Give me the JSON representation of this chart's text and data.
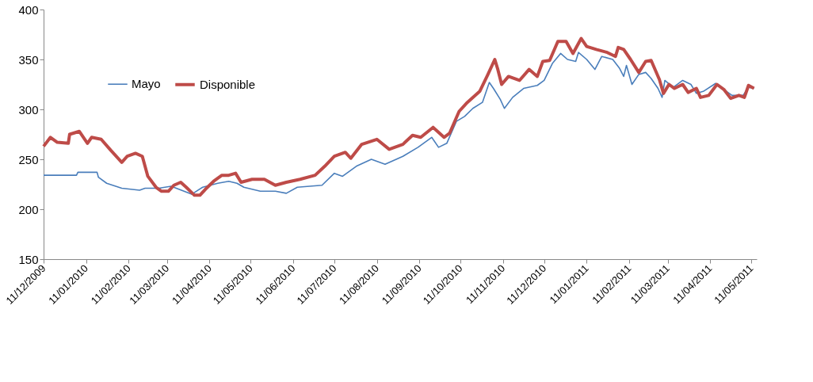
{
  "chart_data": {
    "type": "line",
    "ylim": [
      150,
      400
    ],
    "yticks": [
      150,
      200,
      250,
      300,
      350,
      400
    ],
    "xlim": [
      "2009-12-11",
      "2011-05-15"
    ],
    "xticks": [
      {
        "value": "2009-12-11",
        "label": "11/12/2009"
      },
      {
        "value": "2010-01-11",
        "label": "11/01/2010"
      },
      {
        "value": "2010-02-11",
        "label": "11/02/2010"
      },
      {
        "value": "2010-03-11",
        "label": "11/03/2010"
      },
      {
        "value": "2010-04-11",
        "label": "11/04/2010"
      },
      {
        "value": "2010-05-11",
        "label": "11/05/2010"
      },
      {
        "value": "2010-06-11",
        "label": "11/06/2010"
      },
      {
        "value": "2010-07-11",
        "label": "11/07/2010"
      },
      {
        "value": "2010-08-11",
        "label": "11/08/2010"
      },
      {
        "value": "2010-09-11",
        "label": "11/09/2010"
      },
      {
        "value": "2010-10-11",
        "label": "11/10/2010"
      },
      {
        "value": "2010-11-11",
        "label": "11/11/2010"
      },
      {
        "value": "2010-12-11",
        "label": "11/12/2010"
      },
      {
        "value": "2011-01-11",
        "label": "11/01/2011"
      },
      {
        "value": "2011-02-11",
        "label": "11/02/2011"
      },
      {
        "value": "2011-03-11",
        "label": "11/03/2011"
      },
      {
        "value": "2011-04-11",
        "label": "11/04/2011"
      },
      {
        "value": "2011-05-11",
        "label": "11/05/2011"
      }
    ],
    "grid": false,
    "legend": "top left",
    "marker": "none",
    "line_style": "solid",
    "series": [
      {
        "name": "Mayo",
        "color": "#4a7ebb",
        "x": [
          "2009-12-11",
          "2010-01-04",
          "2010-01-05",
          "2010-01-19",
          "2010-01-20",
          "2010-01-26",
          "2010-02-06",
          "2010-02-19",
          "2010-02-23",
          "2010-03-05",
          "2010-03-14",
          "2010-03-29",
          "2010-04-06",
          "2010-04-17",
          "2010-04-25",
          "2010-05-01",
          "2010-05-06",
          "2010-05-18",
          "2010-05-29",
          "2010-06-06",
          "2010-06-14",
          "2010-07-02",
          "2010-07-11",
          "2010-07-17",
          "2010-07-27",
          "2010-08-07",
          "2010-08-17",
          "2010-08-30",
          "2010-09-10",
          "2010-09-20",
          "2010-09-25",
          "2010-10-01",
          "2010-10-08",
          "2010-10-14",
          "2010-10-20",
          "2010-10-27",
          "2010-11-01",
          "2010-11-04",
          "2010-11-09",
          "2010-11-12",
          "2010-11-18",
          "2010-11-26",
          "2010-12-06",
          "2010-12-11",
          "2010-12-17",
          "2010-12-23",
          "2010-12-28",
          "2011-01-03",
          "2011-01-05",
          "2011-01-11",
          "2011-01-17",
          "2011-01-22",
          "2011-01-30",
          "2011-02-04",
          "2011-02-07",
          "2011-02-09",
          "2011-02-13",
          "2011-02-18",
          "2011-02-23",
          "2011-02-27",
          "2011-03-04",
          "2011-03-07",
          "2011-03-09",
          "2011-03-15",
          "2011-03-22",
          "2011-03-28",
          "2011-04-01",
          "2011-04-06",
          "2011-04-15",
          "2011-04-21",
          "2011-04-27",
          "2011-05-05",
          "2011-05-09",
          "2011-05-13"
        ],
        "values": [
          234,
          234,
          237,
          237,
          232,
          226,
          221,
          219,
          221,
          221,
          223,
          215,
          222,
          226,
          228,
          226,
          222,
          218,
          218,
          216,
          222,
          224,
          236,
          233,
          243,
          250,
          245,
          253,
          262,
          272,
          262,
          266,
          288,
          293,
          301,
          307,
          327,
          321,
          310,
          301,
          312,
          321,
          324,
          329,
          346,
          356,
          350,
          348,
          357,
          350,
          340,
          353,
          350,
          341,
          333,
          344,
          325,
          335,
          337,
          331,
          321,
          312,
          329,
          322,
          329,
          325,
          316,
          318,
          326,
          320,
          314,
          314,
          322,
          321
        ]
      },
      {
        "name": "Disponible",
        "color": "#be4b48",
        "x": [
          "2009-12-11",
          "2009-12-16",
          "2009-12-21",
          "2009-12-29",
          "2009-12-30",
          "2010-01-06",
          "2010-01-12",
          "2010-01-15",
          "2010-01-22",
          "2010-01-29",
          "2010-02-06",
          "2010-02-10",
          "2010-02-16",
          "2010-02-21",
          "2010-02-25",
          "2010-03-03",
          "2010-03-07",
          "2010-03-12",
          "2010-03-16",
          "2010-03-21",
          "2010-03-25",
          "2010-03-31",
          "2010-04-04",
          "2010-04-08",
          "2010-04-14",
          "2010-04-20",
          "2010-04-25",
          "2010-04-30",
          "2010-05-04",
          "2010-05-12",
          "2010-05-21",
          "2010-05-29",
          "2010-06-06",
          "2010-06-16",
          "2010-06-27",
          "2010-07-04",
          "2010-07-11",
          "2010-07-19",
          "2010-07-23",
          "2010-07-31",
          "2010-08-11",
          "2010-08-20",
          "2010-08-30",
          "2010-09-06",
          "2010-09-12",
          "2010-09-21",
          "2010-09-29",
          "2010-10-03",
          "2010-10-10",
          "2010-10-16",
          "2010-10-25",
          "2010-10-31",
          "2010-11-05",
          "2010-11-07",
          "2010-11-10",
          "2010-11-15",
          "2010-11-23",
          "2010-11-30",
          "2010-12-06",
          "2010-12-10",
          "2010-12-15",
          "2010-12-21",
          "2010-12-27",
          "2011-01-01",
          "2011-01-07",
          "2011-01-11",
          "2011-01-18",
          "2011-01-26",
          "2011-02-01",
          "2011-02-03",
          "2011-02-07",
          "2011-02-12",
          "2011-02-18",
          "2011-02-23",
          "2011-02-27",
          "2011-03-05",
          "2011-03-08",
          "2011-03-12",
          "2011-03-16",
          "2011-03-22",
          "2011-03-26",
          "2011-04-01",
          "2011-04-04",
          "2011-04-10",
          "2011-04-16",
          "2011-04-21",
          "2011-04-26",
          "2011-05-02",
          "2011-05-06",
          "2011-05-09",
          "2011-05-13"
        ],
        "values": [
          263,
          272,
          267,
          266,
          275,
          278,
          266,
          272,
          270,
          259,
          247,
          253,
          256,
          253,
          233,
          222,
          218,
          218,
          224,
          227,
          222,
          214,
          214,
          220,
          228,
          234,
          234,
          236,
          227,
          230,
          230,
          224,
          227,
          230,
          234,
          243,
          253,
          257,
          251,
          265,
          270,
          260,
          265,
          274,
          272,
          282,
          272,
          276,
          298,
          307,
          318,
          335,
          350,
          341,
          325,
          333,
          329,
          340,
          333,
          348,
          349,
          368,
          368,
          356,
          371,
          363,
          360,
          357,
          353,
          362,
          360,
          350,
          337,
          348,
          349,
          330,
          316,
          325,
          321,
          325,
          317,
          321,
          312,
          314,
          325,
          320,
          311,
          314,
          312,
          324,
          321
        ]
      }
    ]
  }
}
